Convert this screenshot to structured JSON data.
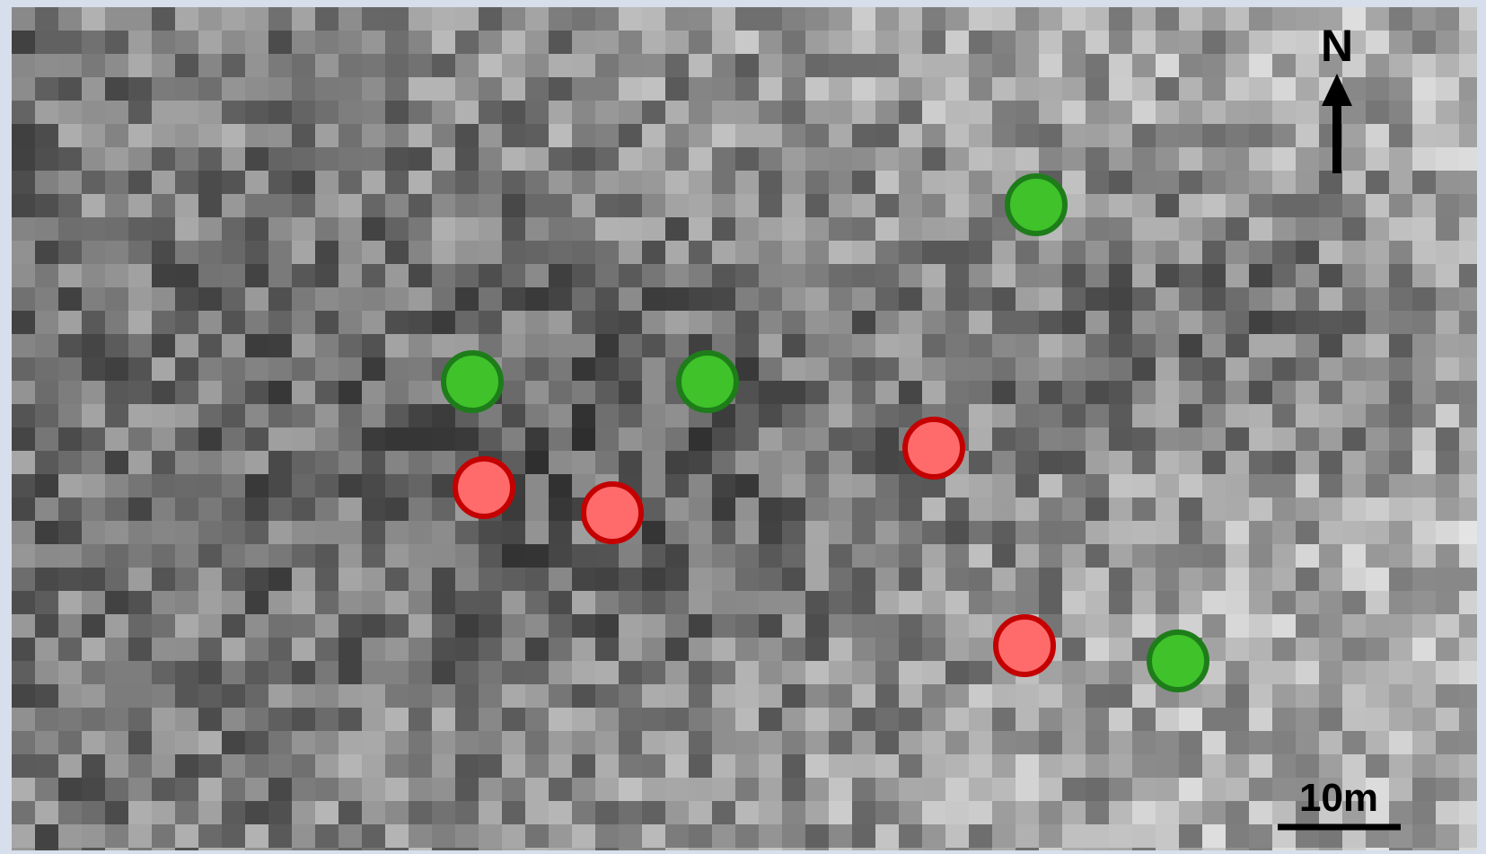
{
  "north_label": "N",
  "scale_label": "10m"
}
